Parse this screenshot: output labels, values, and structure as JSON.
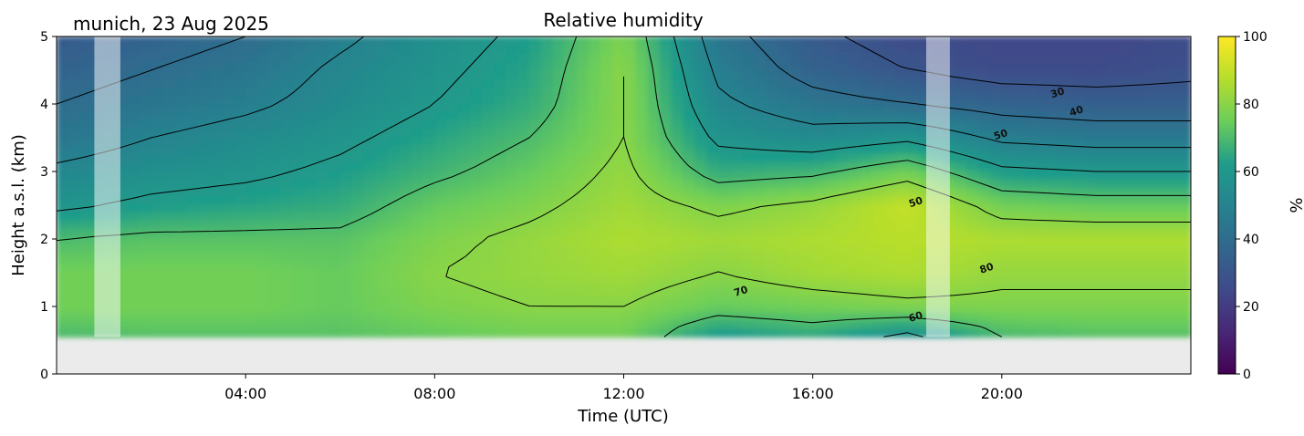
{
  "chart_data": {
    "type": "heatmap",
    "title": "Relative humidity",
    "subtitle": "munich, 23 Aug 2025",
    "xlabel": "Time (UTC)",
    "ylabel": "Height a.s.l. (km)",
    "x_range_hours": [
      0,
      24
    ],
    "ylim": [
      0,
      5
    ],
    "x_tick_labels": [
      "04:00",
      "08:00",
      "12:00",
      "16:00",
      "20:00"
    ],
    "x_ticks_hours": [
      4,
      8,
      12,
      16,
      20
    ],
    "y_ticks": [
      0,
      1,
      2,
      3,
      4,
      5
    ],
    "colorbar": {
      "label": "%",
      "range": [
        0,
        100
      ],
      "ticks": [
        0,
        20,
        40,
        60,
        80,
        100
      ],
      "colormap": "viridis",
      "colors": [
        "#440154",
        "#482777",
        "#3f4a8a",
        "#31678e",
        "#26838f",
        "#1f9d8a",
        "#6cce5a",
        "#b6de2b",
        "#fee825"
      ]
    },
    "data_floor_km": 0.55,
    "below_floor_color": "#ebebeb",
    "no_data_intervals_hours": [
      [
        0.8,
        1.35
      ],
      [
        18.4,
        18.9
      ]
    ],
    "heights_km": [
      0.6,
      1.0,
      1.5,
      2.0,
      2.5,
      3.0,
      3.5,
      4.0,
      4.5,
      5.0
    ],
    "times_hours": [
      0,
      2,
      4,
      6,
      8,
      10,
      12,
      14,
      16,
      18,
      20,
      22,
      24
    ],
    "rh_percent": [
      [
        70,
        72,
        72,
        72,
        74,
        76,
        76,
        62,
        66,
        58,
        70,
        72,
        72
      ],
      [
        76,
        76,
        76,
        74,
        78,
        80,
        80,
        74,
        76,
        78,
        78,
        78,
        78
      ],
      [
        76,
        76,
        76,
        74,
        80,
        82,
        84,
        80,
        84,
        86,
        82,
        82,
        82
      ],
      [
        70,
        72,
        72,
        72,
        78,
        82,
        86,
        84,
        86,
        88,
        86,
        86,
        86
      ],
      [
        58,
        62,
        64,
        66,
        74,
        78,
        84,
        78,
        82,
        90,
        76,
        74,
        74
      ],
      [
        52,
        56,
        58,
        62,
        68,
        74,
        82,
        66,
        68,
        76,
        62,
        60,
        60
      ],
      [
        44,
        50,
        54,
        58,
        64,
        70,
        80,
        58,
        54,
        58,
        48,
        46,
        46
      ],
      [
        40,
        44,
        48,
        54,
        60,
        66,
        80,
        52,
        44,
        40,
        36,
        34,
        34
      ],
      [
        36,
        40,
        44,
        52,
        58,
        64,
        80,
        48,
        36,
        30,
        26,
        26,
        28
      ],
      [
        32,
        36,
        40,
        48,
        56,
        62,
        78,
        44,
        32,
        26,
        24,
        24,
        26
      ]
    ],
    "contour_levels": [
      30,
      40,
      50,
      60,
      70,
      80
    ],
    "contour_labels": [
      {
        "text": "30",
        "x_hour": 21.2,
        "y_km": 4.12
      },
      {
        "text": "40",
        "x_hour": 21.6,
        "y_km": 3.85
      },
      {
        "text": "50",
        "x_hour": 20.0,
        "y_km": 3.5
      },
      {
        "text": "50",
        "x_hour": 18.2,
        "y_km": 2.5
      },
      {
        "text": "70",
        "x_hour": 14.5,
        "y_km": 1.18
      },
      {
        "text": "80",
        "x_hour": 19.7,
        "y_km": 1.52
      },
      {
        "text": "60",
        "x_hour": 18.2,
        "y_km": 0.8
      }
    ]
  }
}
